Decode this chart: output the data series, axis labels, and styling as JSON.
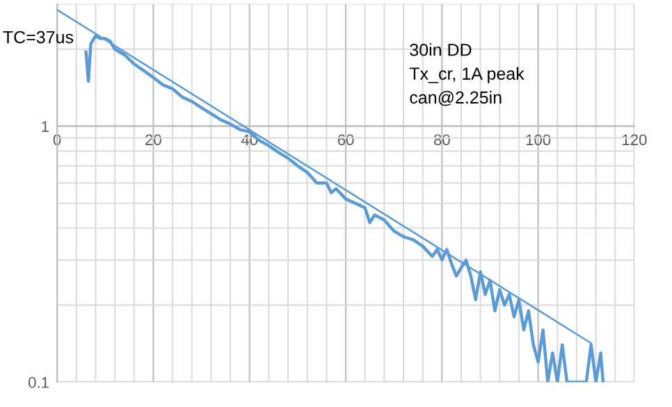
{
  "chart_data": {
    "type": "line",
    "title": "TC=37us",
    "annotations": [
      "30in DD",
      "Tx_cr, 1A peak",
      "can@2.25in"
    ],
    "log": "y",
    "grid": true,
    "xlim": [
      0,
      120
    ],
    "xticks": [
      0,
      20,
      40,
      60,
      80,
      100,
      120
    ],
    "ylim": [
      0.1,
      3
    ],
    "yticks": [
      0.1,
      1
    ],
    "series": [
      {
        "color": "#5b9bd5",
        "x": [
          6,
          6.5,
          7,
          8,
          9,
          10,
          11,
          12,
          14,
          16,
          18,
          20,
          22,
          24,
          26,
          28,
          30,
          32,
          34,
          36,
          38,
          40,
          42,
          44,
          46,
          48,
          50,
          52,
          54,
          56,
          57,
          58,
          60,
          62,
          64,
          65,
          66,
          68,
          70,
          72,
          74,
          76,
          78,
          79,
          80,
          81,
          82,
          83,
          84,
          85,
          86,
          87,
          88,
          89,
          90,
          91,
          92,
          93,
          94,
          95,
          96,
          97,
          98,
          99,
          100,
          101,
          102,
          103,
          104,
          105,
          106,
          108,
          110,
          111,
          112,
          113,
          113.5
        ],
        "values": [
          1.95,
          1.5,
          2.1,
          2.25,
          2.2,
          2.2,
          2.15,
          2.0,
          1.9,
          1.75,
          1.65,
          1.55,
          1.45,
          1.4,
          1.3,
          1.25,
          1.18,
          1.12,
          1.06,
          1.02,
          0.97,
          0.95,
          0.88,
          0.84,
          0.79,
          0.75,
          0.7,
          0.66,
          0.6,
          0.6,
          0.55,
          0.57,
          0.52,
          0.5,
          0.48,
          0.42,
          0.45,
          0.43,
          0.39,
          0.37,
          0.36,
          0.34,
          0.31,
          0.33,
          0.3,
          0.33,
          0.29,
          0.26,
          0.28,
          0.3,
          0.26,
          0.21,
          0.27,
          0.22,
          0.25,
          0.19,
          0.23,
          0.2,
          0.22,
          0.18,
          0.21,
          0.16,
          0.19,
          0.14,
          0.12,
          0.16,
          0.1,
          0.13,
          0.1,
          0.14,
          0.1,
          0.1,
          0.1,
          0.14,
          0.1,
          0.13,
          0.1
        ]
      },
      {
        "color": "#5b9bd5",
        "x": [
          0,
          111
        ],
        "values": [
          2.85,
          0.142
        ]
      }
    ]
  }
}
